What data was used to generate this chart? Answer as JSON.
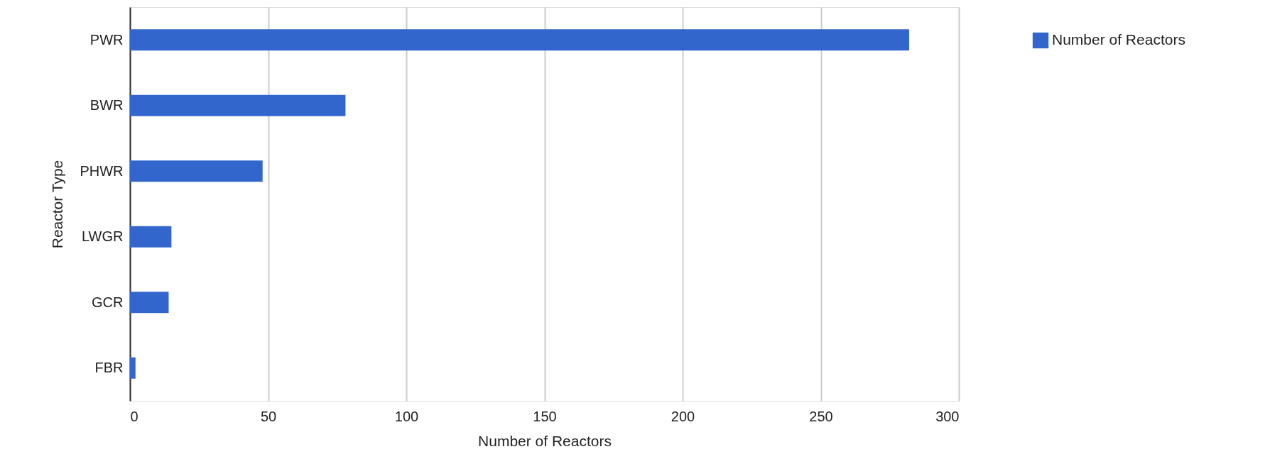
{
  "chart_data": {
    "type": "bar",
    "orientation": "horizontal",
    "xlabel": "Number of Reactors",
    "ylabel": "Reactor Type",
    "categories": [
      "PWR",
      "BWR",
      "PHWR",
      "LWGR",
      "GCR",
      "FBR"
    ],
    "series": [
      {
        "name": "Number of Reactors",
        "color": "#3366cc",
        "values": [
          282,
          78,
          48,
          15,
          14,
          2
        ]
      }
    ],
    "xlim": [
      0,
      300
    ],
    "xticks": [
      0,
      50,
      100,
      150,
      200,
      250,
      300
    ],
    "grid": "x",
    "legend": "top right"
  }
}
